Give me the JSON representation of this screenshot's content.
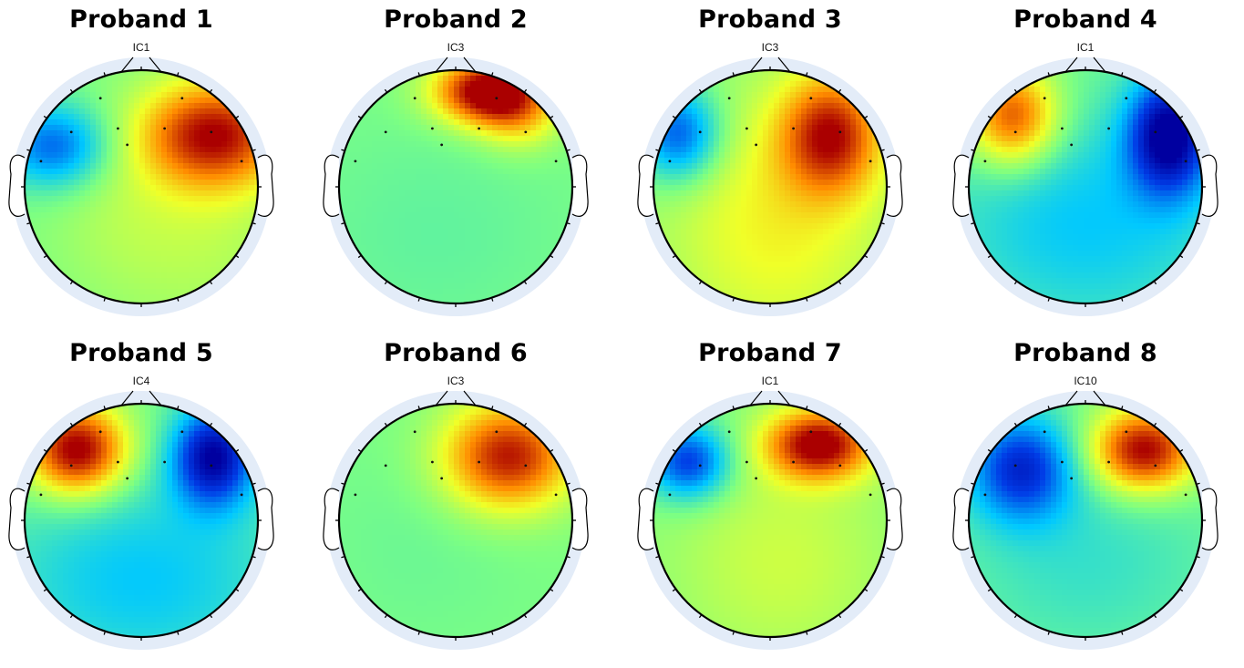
{
  "figure": {
    "panels": [
      {
        "title": "Proband 1",
        "component": "IC1"
      },
      {
        "title": "Proband 2",
        "component": "IC3"
      },
      {
        "title": "Proband 3",
        "component": "IC3"
      },
      {
        "title": "Proband 4",
        "component": "IC1"
      },
      {
        "title": "Proband 5",
        "component": "IC4"
      },
      {
        "title": "Proband 6",
        "component": "IC3"
      },
      {
        "title": "Proband 7",
        "component": "IC1"
      },
      {
        "title": "Proband 8",
        "component": "IC10"
      }
    ],
    "colormap": "jet",
    "colors": {
      "background": "#ffffff",
      "halo": "#e3ecf8",
      "outline": "#000000"
    }
  }
}
